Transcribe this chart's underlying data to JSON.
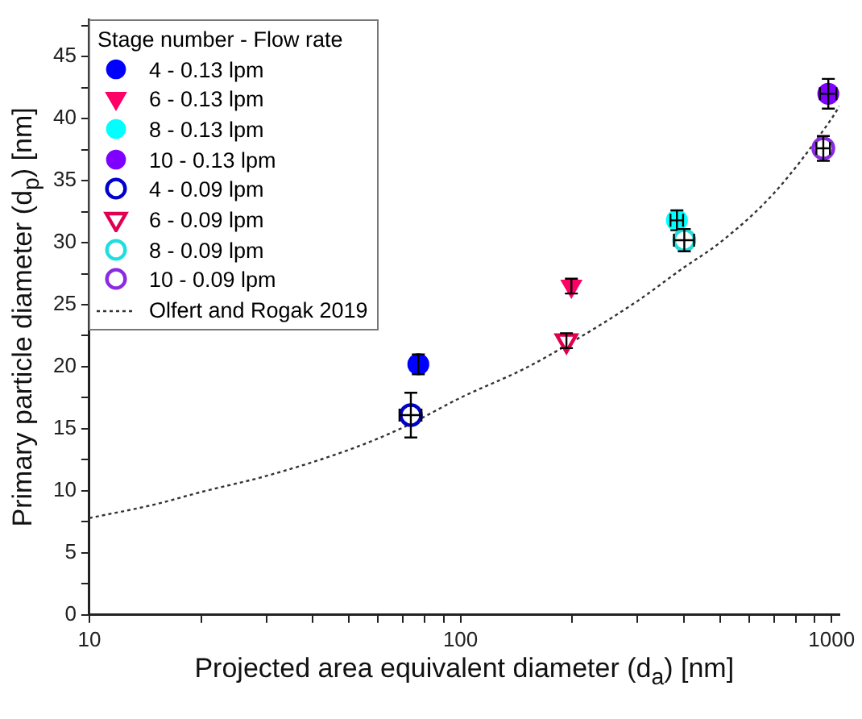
{
  "chart_data": {
    "type": "scatter",
    "xlabel": "Projected area equivalent diameter (d$_{a}$) [nm]",
    "ylabel": "Primary particle diameter (d$_{p}$) [nm]",
    "legend_title": "Stage number - Flow rate",
    "log": "x",
    "xlim": [
      10,
      1050
    ],
    "ylim": [
      0,
      48
    ],
    "xticks": [
      10,
      {
        "value": 20,
        "label": null
      },
      {
        "value": 30,
        "label": null
      },
      {
        "value": 40,
        "label": null
      },
      {
        "value": 50,
        "label": null
      },
      {
        "value": 60,
        "label": null
      },
      {
        "value": 70,
        "label": null
      },
      {
        "value": 80,
        "label": null
      },
      {
        "value": 90,
        "label": null
      },
      100,
      {
        "value": 200,
        "label": null
      },
      {
        "value": 300,
        "label": null
      },
      {
        "value": 400,
        "label": null
      },
      {
        "value": 500,
        "label": null
      },
      {
        "value": 600,
        "label": null
      },
      {
        "value": 700,
        "label": null
      },
      {
        "value": 800,
        "label": null
      },
      {
        "value": 900,
        "label": null
      },
      1000
    ],
    "yticks": [
      0,
      {
        "value": 2.5,
        "label": null
      },
      5,
      {
        "value": 7.5,
        "label": null
      },
      10,
      {
        "value": 12.5,
        "label": null
      },
      15,
      {
        "value": 17.5,
        "label": null
      },
      20,
      {
        "value": 22.5,
        "label": null
      },
      25,
      {
        "value": 27.5,
        "label": null
      },
      30,
      {
        "value": 32.5,
        "label": null
      },
      35,
      {
        "value": 37.5,
        "label": null
      },
      40,
      {
        "value": 42.5,
        "label": null
      },
      45,
      {
        "value": 47.5,
        "label": null
      }
    ],
    "legend": "top left",
    "grid": false,
    "series": [
      {
        "name": "4 - 0.13 lpm",
        "color": "#0000ff",
        "marker": "circle",
        "x": [
          77
        ],
        "values": [
          20.2
        ],
        "errors": [
          0.8
        ]
      },
      {
        "name": "6 - 0.13 lpm",
        "color": "#ff0066",
        "marker": "triangle-down",
        "x": [
          199
        ],
        "values": [
          26.5
        ],
        "errors": [
          0.6
        ]
      },
      {
        "name": "8 - 0.13 lpm",
        "color": "#00ffff",
        "x": [
          383
        ],
        "values": [
          31.8
        ],
        "errors": [
          0.8
        ],
        "xerrors": [
          15
        ]
      },
      {
        "name": "10 - 0.13 lpm",
        "color": "#7f00ff",
        "x": [
          980
        ],
        "values": [
          42.0
        ],
        "errors": [
          1.2
        ],
        "xerrors": [
          50
        ]
      },
      {
        "name": "4 - 0.09 lpm",
        "color": "#0000cc",
        "marker": "circle-open",
        "x": [
          73.5
        ],
        "values": [
          16.1
        ],
        "errors": [
          1.8
        ],
        "xerrors": [
          5
        ]
      },
      {
        "name": "6 - 0.09 lpm",
        "color": "#e0004f",
        "marker": "triangle-down-open",
        "x": [
          193
        ],
        "values": [
          22.1
        ],
        "errors": [
          0.6
        ]
      },
      {
        "name": "8 - 0.09 lpm",
        "color": "#22dddd",
        "marker": "circle-open",
        "x": [
          401
        ],
        "values": [
          30.2
        ],
        "errors": [
          0.9
        ],
        "xerrors": [
          25
        ]
      },
      {
        "name": "10 - 0.09 lpm",
        "color": "#8a2be2",
        "marker": "circle-open",
        "x": [
          950
        ],
        "values": [
          37.6
        ],
        "errors": [
          1.0
        ],
        "xerrors": [
          40
        ]
      },
      {
        "name": "Olfert and Rogak 2019",
        "type": "line",
        "color": "#333333",
        "marker": "none",
        "line_style": "dotted",
        "x": [
          10,
          15,
          20,
          30,
          50,
          70,
          100,
          150,
          200,
          300,
          400,
          500,
          700,
          1000,
          1050
        ],
        "values": [
          7.8,
          8.9,
          9.9,
          11.2,
          13.3,
          15.1,
          17.5,
          19.9,
          22.0,
          25.3,
          28.0,
          30.0,
          34.0,
          40.0,
          41.0
        ]
      }
    ]
  }
}
